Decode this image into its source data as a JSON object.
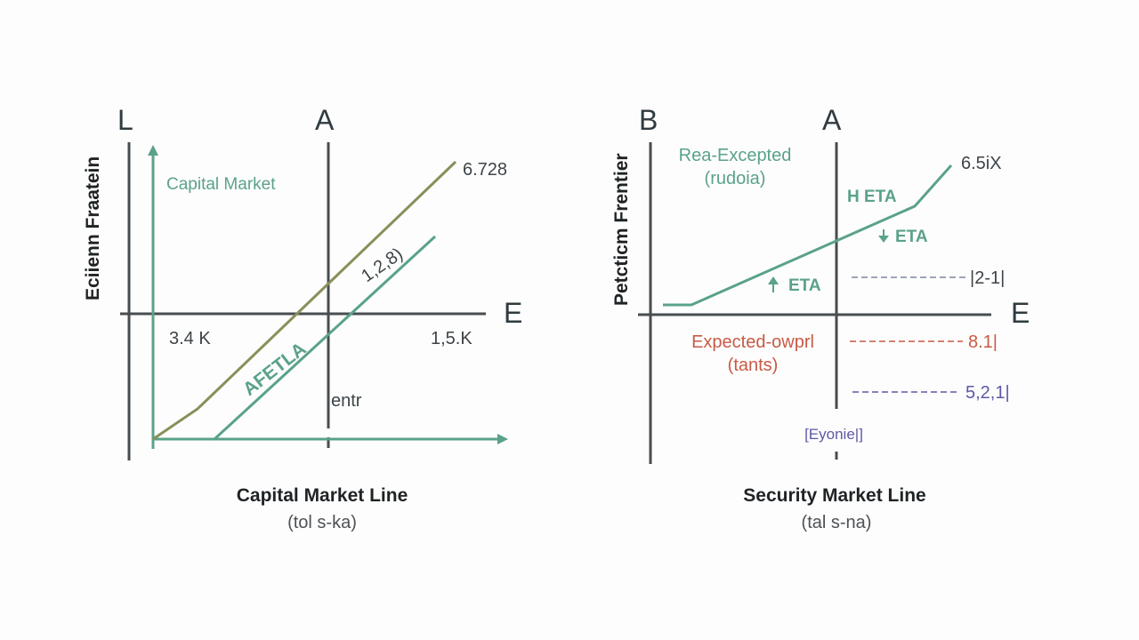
{
  "colors": {
    "axis": "#474d50",
    "green": "#5aa288",
    "olive": "#8a8f5a",
    "red": "#c85a45",
    "purple": "#5d59a6",
    "text": "#3d4448"
  },
  "left": {
    "corner_left": "L",
    "corner_right": "A",
    "corner_e": "E",
    "ylabel": "Eciienn Fraatein",
    "curve_label": "Capital Market",
    "value_top": "6.728",
    "value_mid": "1,2,8)",
    "line_label": "AFETLA",
    "value_left": "3.4 K",
    "value_right": "1,5.K",
    "center_label": "entr",
    "title": "Capital Market Line",
    "subtitle": "(tol s-ka)"
  },
  "right": {
    "corner_left": "B",
    "corner_right": "A",
    "corner_e": "E",
    "ylabel": "Petcticm Frentier",
    "top_label_1": "Rea-Excepted",
    "top_label_2": "(rudoia)",
    "value_top": "6.5iX",
    "eta_high": "H ETA",
    "eta_down": "ETA",
    "eta_up": "ETA",
    "value_1": "|2-1|",
    "red_label_1": "Expected-owprl",
    "red_label_2": "(tants)",
    "value_2": "8.1|",
    "value_3": "5,2,1|",
    "bracket_label": "[Eyonie|]",
    "title": "Security Market Line",
    "subtitle": "(tal s-na)"
  }
}
